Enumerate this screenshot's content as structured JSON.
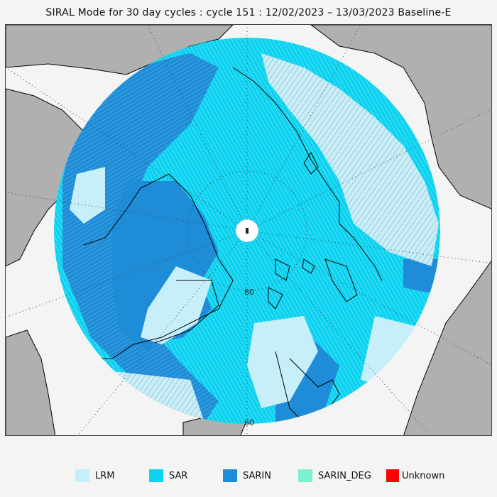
{
  "title": "SIRAL Mode for 30 day cycles : cycle 151 : 12/02/2023 – 13/03/2023 Baseline-E",
  "map": {
    "latitude_labels": [
      "80",
      "60"
    ],
    "colors": {
      "land": "#b0b0b0",
      "ocean": "#f4f4f4",
      "coastline": "#000000",
      "graticule": "#444444"
    }
  },
  "legend": [
    {
      "label": "LRM",
      "color": "#c6effa"
    },
    {
      "label": "SAR",
      "color": "#0ad2f0"
    },
    {
      "label": "SARIN",
      "color": "#1e8cd6"
    },
    {
      "label": "SARIN_DEG",
      "color": "#7af2d2"
    },
    {
      "label": "Unknown",
      "color": "#ff0000"
    }
  ]
}
